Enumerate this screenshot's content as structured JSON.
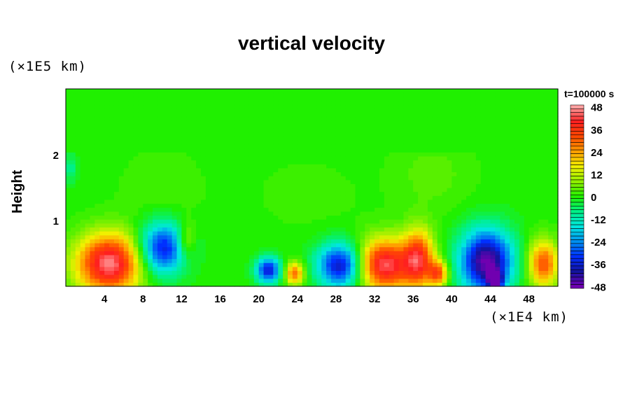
{
  "chart_data": {
    "type": "heatmap",
    "title": "vertical velocity",
    "ylabel": "Height",
    "xunit": "(×1E4 km)",
    "yunit": "(×1E5 km)",
    "time_label": "t=100000 s",
    "xlim": [
      0,
      51
    ],
    "ylim": [
      0,
      3
    ],
    "xticks": [
      "4",
      "8",
      "12",
      "16",
      "20",
      "24",
      "28",
      "32",
      "36",
      "40",
      "44",
      "48"
    ],
    "yticks": [
      "1",
      "2"
    ],
    "colorbar": {
      "min": -48,
      "max": 48,
      "step": 2,
      "labels": [
        "48",
        "36",
        "24",
        "12",
        "0",
        "-12",
        "-24",
        "-36",
        "-48"
      ],
      "stops": [
        [
          -48,
          "#7000b0"
        ],
        [
          -40,
          "#1414a0"
        ],
        [
          -32,
          "#0030ff"
        ],
        [
          -24,
          "#0090f0"
        ],
        [
          -16,
          "#00e6e0"
        ],
        [
          -8,
          "#00f088"
        ],
        [
          0,
          "#20f000"
        ],
        [
          8,
          "#90f000"
        ],
        [
          16,
          "#f0f000"
        ],
        [
          24,
          "#ffa000"
        ],
        [
          32,
          "#ff4a00"
        ],
        [
          40,
          "#ff2020"
        ],
        [
          48,
          "#ffa0a0"
        ]
      ]
    },
    "features": [
      {
        "x": 4.5,
        "h": 0.35,
        "value": 46,
        "sx": 2.4,
        "sh": 0.32
      },
      {
        "x": 10,
        "h": 0.58,
        "value": -36,
        "sx": 1.7,
        "sh": 0.28
      },
      {
        "x": 12.5,
        "h": 0.7,
        "value": 14,
        "sx": 0.6,
        "sh": 0.2
      },
      {
        "x": 21,
        "h": 0.25,
        "value": -36,
        "sx": 0.9,
        "sh": 0.14
      },
      {
        "x": 23.7,
        "h": 0.2,
        "value": 30,
        "sx": 0.7,
        "sh": 0.12
      },
      {
        "x": 28.5,
        "h": 0.32,
        "value": -40,
        "sx": 1.7,
        "sh": 0.24
      },
      {
        "x": 33,
        "h": 0.33,
        "value": 44,
        "sx": 2.1,
        "sh": 0.28
      },
      {
        "x": 36.6,
        "h": 0.42,
        "value": 34,
        "sx": 1.1,
        "sh": 0.32
      },
      {
        "x": 38.6,
        "h": 0.2,
        "value": 30,
        "sx": 0.7,
        "sh": 0.14
      },
      {
        "x": 43.6,
        "h": 0.38,
        "value": -48,
        "sx": 1.9,
        "sh": 0.34
      },
      {
        "x": 44.5,
        "h": 0.1,
        "value": -40,
        "sx": 0.5,
        "sh": 0.1
      },
      {
        "x": 49.5,
        "h": 0.35,
        "value": 32,
        "sx": 1.1,
        "sh": 0.25
      },
      {
        "x": 38,
        "h": 1.7,
        "value": 4,
        "sx": 3,
        "sh": 0.4
      },
      {
        "x": 10,
        "h": 1.5,
        "value": 3,
        "sx": 3,
        "sh": 0.4
      },
      {
        "x": 25,
        "h": 1.4,
        "value": 2,
        "sx": 4,
        "sh": 0.4
      },
      {
        "x": 0.5,
        "h": 1.8,
        "value": -10,
        "sx": 0.4,
        "sh": 0.15
      }
    ]
  }
}
